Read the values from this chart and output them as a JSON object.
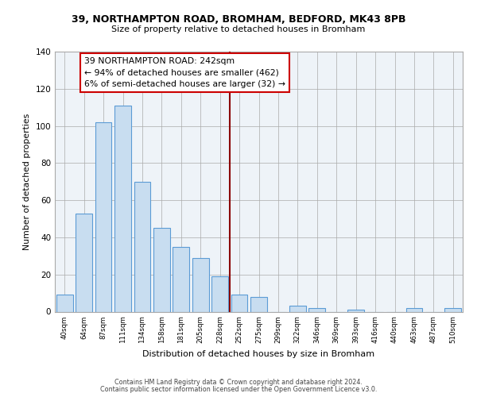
{
  "title1": "39, NORTHAMPTON ROAD, BROMHAM, BEDFORD, MK43 8PB",
  "title2": "Size of property relative to detached houses in Bromham",
  "xlabel": "Distribution of detached houses by size in Bromham",
  "ylabel": "Number of detached properties",
  "bar_color": "#c8ddf0",
  "bar_edge_color": "#5b9bd5",
  "categories": [
    "40sqm",
    "64sqm",
    "87sqm",
    "111sqm",
    "134sqm",
    "158sqm",
    "181sqm",
    "205sqm",
    "228sqm",
    "252sqm",
    "275sqm",
    "299sqm",
    "322sqm",
    "346sqm",
    "369sqm",
    "393sqm",
    "416sqm",
    "440sqm",
    "463sqm",
    "487sqm",
    "510sqm"
  ],
  "values": [
    9,
    53,
    102,
    111,
    70,
    45,
    35,
    29,
    19,
    9,
    8,
    0,
    3,
    2,
    0,
    1,
    0,
    0,
    2,
    0,
    2
  ],
  "vline_x": 8.5,
  "vline_color": "#8b0000",
  "annotation_title": "39 NORTHAMPTON ROAD: 242sqm",
  "annotation_line1": "← 94% of detached houses are smaller (462)",
  "annotation_line2": "6% of semi-detached houses are larger (32) →",
  "annotation_box_color": "#ffffff",
  "annotation_box_edge": "#cc0000",
  "ylim": [
    0,
    140
  ],
  "yticks": [
    0,
    20,
    40,
    60,
    80,
    100,
    120,
    140
  ],
  "footer1": "Contains HM Land Registry data © Crown copyright and database right 2024.",
  "footer2": "Contains public sector information licensed under the Open Government Licence v3.0.",
  "bg_color": "#eef3f8"
}
